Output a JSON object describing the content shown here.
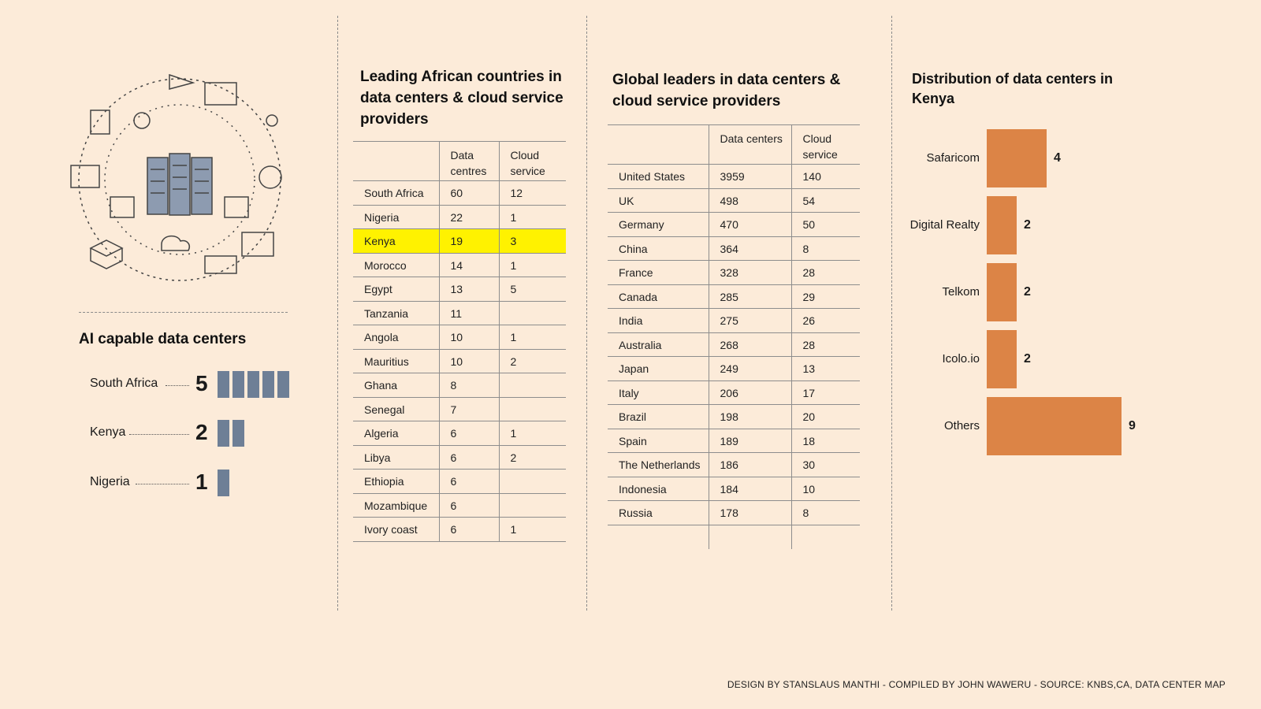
{
  "ai_section": {
    "title": "AI capable data centers",
    "items": [
      {
        "country": "South Africa",
        "value": 5
      },
      {
        "country": "Kenya",
        "value": 2
      },
      {
        "country": "Nigeria",
        "value": 1
      }
    ]
  },
  "african_table": {
    "title": "Leading African countries in data centers & cloud service providers",
    "headers": [
      "",
      "Data centres",
      "Cloud service"
    ],
    "highlight": "Kenya",
    "highlight_color": "#fff200",
    "rows": [
      [
        "South Africa",
        "60",
        "12"
      ],
      [
        "Nigeria",
        "22",
        "1"
      ],
      [
        "Kenya",
        "19",
        "3"
      ],
      [
        "Morocco",
        "14",
        "1"
      ],
      [
        "Egypt",
        "13",
        "5"
      ],
      [
        "Tanzania",
        "11",
        ""
      ],
      [
        "Angola",
        "10",
        "1"
      ],
      [
        "Mauritius",
        "10",
        "2"
      ],
      [
        "Ghana",
        "8",
        ""
      ],
      [
        "Senegal",
        "7",
        ""
      ],
      [
        "Algeria",
        "6",
        "1"
      ],
      [
        "Libya",
        "6",
        "2"
      ],
      [
        "Ethiopia",
        "6",
        ""
      ],
      [
        "Mozambique",
        "6",
        ""
      ],
      [
        "Ivory coast",
        "6",
        "1"
      ]
    ]
  },
  "global_table": {
    "title": "Global leaders in data centers  & cloud service providers",
    "headers": [
      "",
      "Data centers",
      "Cloud service"
    ],
    "rows": [
      [
        "United States",
        "3959",
        "140"
      ],
      [
        "UK",
        "498",
        "54"
      ],
      [
        "Germany",
        "470",
        "50"
      ],
      [
        "China",
        "364",
        "8"
      ],
      [
        "France",
        "328",
        "28"
      ],
      [
        "Canada",
        "285",
        "29"
      ],
      [
        "India",
        "275",
        "26"
      ],
      [
        "Australia",
        "268",
        "28"
      ],
      [
        "Japan",
        "249",
        "13"
      ],
      [
        "Italy",
        "206",
        "17"
      ],
      [
        "Brazil",
        "198",
        "20"
      ],
      [
        "Spain",
        "189",
        "18"
      ],
      [
        "The Netherlands",
        "186",
        "30"
      ],
      [
        "Indonesia",
        "184",
        "10"
      ],
      [
        "Russia",
        "178",
        "8"
      ]
    ]
  },
  "chart_data": {
    "type": "bar",
    "title": "Distribution of data centers in Kenya",
    "orientation": "horizontal",
    "categories": [
      "Safaricom",
      "Digital Realty",
      "Telkom",
      "Icolo.io",
      "Others"
    ],
    "values": [
      4,
      2,
      2,
      2,
      9
    ],
    "color": "#dc8446"
  },
  "footer": "DESIGN BY STANSLAUS MANTHI   - COMPILED BY JOHN WAWERU - SOURCE: KNBS,CA, DATA CENTER MAP",
  "colors": {
    "background": "#fcebd9",
    "ai_bar": "#6e7f96"
  }
}
